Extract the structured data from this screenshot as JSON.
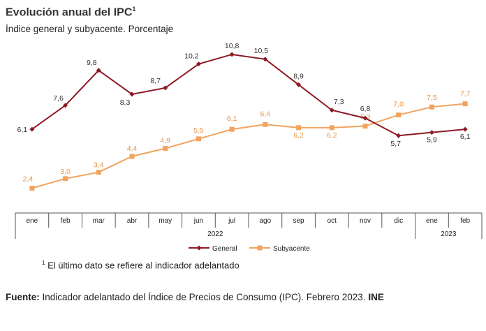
{
  "header": {
    "title": "Evolución anual del IPC",
    "title_note": "1",
    "subtitle": "Índice general y subyacente. Porcentaje"
  },
  "chart_data": {
    "type": "line",
    "categories": [
      "ene",
      "feb",
      "mar",
      "abr",
      "may",
      "jun",
      "jul",
      "ago",
      "sep",
      "oct",
      "nov",
      "dic",
      "ene",
      "feb"
    ],
    "year_groups": [
      {
        "label": "2022",
        "from": 0,
        "to": 11
      },
      {
        "label": "2023",
        "from": 12,
        "to": 13
      }
    ],
    "series": [
      {
        "name": "General",
        "color": "#8b1a24",
        "marker": "diamond",
        "values": [
          6.1,
          7.6,
          9.8,
          8.3,
          8.7,
          10.2,
          10.8,
          10.5,
          8.9,
          7.3,
          6.8,
          5.7,
          5.9,
          6.1
        ],
        "labels": [
          "6,1",
          "7,6",
          "9,8",
          "8,3",
          "8,7",
          "10,2",
          "10,8",
          "10,5",
          "8,9",
          "7,3",
          "6,8",
          "5,7",
          "5,9",
          "6,1"
        ]
      },
      {
        "name": "Subyacente",
        "color": "#f2a35e",
        "marker": "square",
        "values": [
          2.4,
          3.0,
          3.4,
          4.4,
          4.9,
          5.5,
          6.1,
          6.4,
          6.2,
          6.2,
          6.3,
          7.0,
          7.5,
          7.7
        ],
        "labels": [
          "2,4",
          "3,0",
          "3,4",
          "4,4",
          "4,9",
          "5,5",
          "6,1",
          "6,4",
          "6,2",
          "6,2",
          "6,3",
          "7,0",
          "7,5",
          "7,7"
        ]
      }
    ],
    "ylim": [
      1.5,
      11.5
    ],
    "grid": false,
    "legend": "bottom"
  },
  "footnote": {
    "mark": "1",
    "text": "El último dato se refiere al indicador adelantado"
  },
  "source": {
    "label": "Fuente:",
    "text": "Indicador adelantado del Índice de Precios de Consumo (IPC).  Febrero 2023.",
    "org": "INE"
  }
}
